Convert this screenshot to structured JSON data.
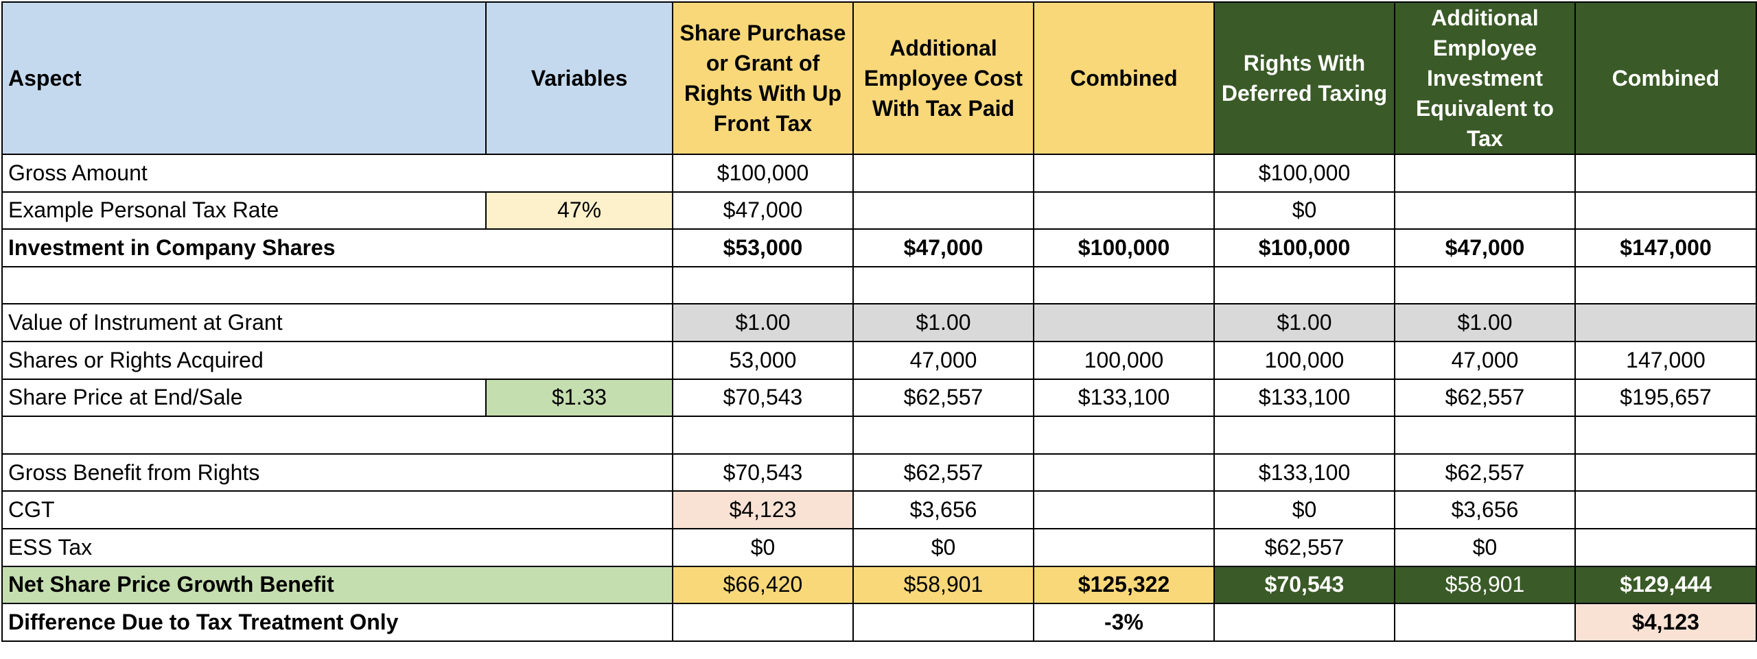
{
  "headers": {
    "aspect": "Aspect",
    "variables": "Variables",
    "col1": "Share Purchase or Grant of Rights With Up Front Tax",
    "col2": "Additional Employee Cost With Tax Paid",
    "col3": "Combined",
    "col4": "Rights With Deferred Taxing",
    "col5": "Additional Employee Investment Equivalent to Tax",
    "col6": "Combined"
  },
  "rows": {
    "gross": {
      "label": "Gross Amount",
      "var": "",
      "c1": "$100,000",
      "c2": "",
      "c3": "",
      "c4": "$100,000",
      "c5": "",
      "c6": ""
    },
    "taxrate": {
      "label": "Example Personal Tax Rate",
      "var": "47%",
      "c1": "$47,000",
      "c2": "",
      "c3": "",
      "c4": "$0",
      "c5": "",
      "c6": ""
    },
    "invest": {
      "label": "Investment in Company Shares",
      "var": "",
      "c1": "$53,000",
      "c2": "$47,000",
      "c3": "$100,000",
      "c4": "$100,000",
      "c5": "$47,000",
      "c6": "$147,000"
    },
    "value": {
      "label": "Value of Instrument at Grant",
      "var": "",
      "c1": "$1.00",
      "c2": "$1.00",
      "c3": "",
      "c4": "$1.00",
      "c5": "$1.00",
      "c6": ""
    },
    "shares": {
      "label": "Shares or Rights Acquired",
      "var": "",
      "c1": "53,000",
      "c2": "47,000",
      "c3": "100,000",
      "c4": "100,000",
      "c5": "47,000",
      "c6": "147,000"
    },
    "price": {
      "label": "Share Price at End/Sale",
      "var": "$1.33",
      "c1": "$70,543",
      "c2": "$62,557",
      "c3": "$133,100",
      "c4": "$133,100",
      "c5": "$62,557",
      "c6": "$195,657"
    },
    "grossben": {
      "label": "Gross Benefit from Rights",
      "var": "",
      "c1": "$70,543",
      "c2": "$62,557",
      "c3": "",
      "c4": "$133,100",
      "c5": "$62,557",
      "c6": ""
    },
    "cgt": {
      "label": "CGT",
      "var": "",
      "c1": "$4,123",
      "c2": "$3,656",
      "c3": "",
      "c4": "$0",
      "c5": "$3,656",
      "c6": ""
    },
    "ess": {
      "label": "ESS Tax",
      "var": "",
      "c1": "$0",
      "c2": "$0",
      "c3": "",
      "c4": "$62,557",
      "c5": "$0",
      "c6": ""
    },
    "net": {
      "label": "Net Share Price Growth Benefit",
      "var": "",
      "c1": "$66,420",
      "c2": "$58,901",
      "c3": "$125,322",
      "c4": "$70,543",
      "c5": "$58,901",
      "c6": "$129,444"
    },
    "diff": {
      "label": "Difference Due to Tax Treatment Only",
      "var": "",
      "c1": "",
      "c2": "",
      "c3": "-3%",
      "c4": "",
      "c5": "",
      "c6": "$4,123"
    }
  },
  "colors": {
    "header_blue": "#c5d9ee",
    "header_yellow": "#f9d87a",
    "header_green": "#3a5a27",
    "var_yellow": "#fdf1cc",
    "var_green": "#c5deb0",
    "grey": "#d9d9d9",
    "salmon": "#f9e2d4"
  }
}
